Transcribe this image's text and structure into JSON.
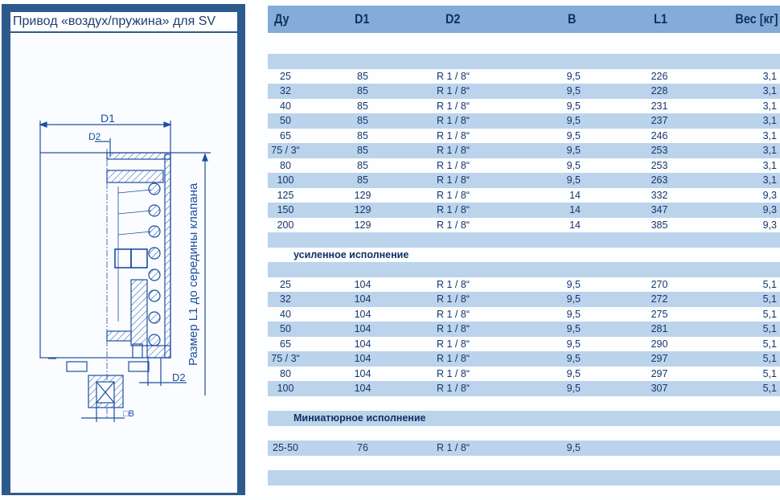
{
  "title": "Привод «воздух/пружина» для SV",
  "drawing": {
    "label_d1": "D1",
    "label_d2_top": "D2",
    "label_d2_bottom": "D2",
    "label_b": "□B",
    "vertical_caption": "Размер L1 до середины клапана",
    "line_color": "#1d4fa0"
  },
  "colors": {
    "frame": "#2d5a8c",
    "header": "#85acd8",
    "stripe": "#bcd3ec",
    "text": "#14376a"
  },
  "table": {
    "columns": [
      "Ду",
      "D1",
      "D2",
      "B",
      "L1",
      "Вес [кг]"
    ],
    "rows": [
      {
        "type": "blank"
      },
      {
        "type": "blank"
      },
      {
        "type": "data",
        "cells": [
          "25",
          "85",
          "R 1 / 8“",
          "9,5",
          "226",
          "3,1"
        ]
      },
      {
        "type": "data",
        "cells": [
          "32",
          "85",
          "R 1 / 8“",
          "9,5",
          "228",
          "3,1"
        ]
      },
      {
        "type": "data",
        "cells": [
          "40",
          "85",
          "R 1 / 8“",
          "9,5",
          "231",
          "3,1"
        ]
      },
      {
        "type": "data",
        "cells": [
          "50",
          "85",
          "R 1 / 8“",
          "9,5",
          "237",
          "3,1"
        ]
      },
      {
        "type": "data",
        "cells": [
          "65",
          "85",
          "R 1 / 8“",
          "9,5",
          "246",
          "3,1"
        ]
      },
      {
        "type": "data",
        "cells": [
          "75 / 3“",
          "85",
          "R 1 / 8“",
          "9,5",
          "253",
          "3,1"
        ]
      },
      {
        "type": "data",
        "cells": [
          "80",
          "85",
          "R 1 / 8“",
          "9,5",
          "253",
          "3,1"
        ]
      },
      {
        "type": "data",
        "cells": [
          "100",
          "85",
          "R 1 / 8“",
          "9,5",
          "263",
          "3,1"
        ]
      },
      {
        "type": "data",
        "cells": [
          "125",
          "129",
          "R 1 / 8“",
          "14",
          "332",
          "9,3"
        ]
      },
      {
        "type": "data",
        "cells": [
          "150",
          "129",
          "R 1 / 8“",
          "14",
          "347",
          "9,3"
        ]
      },
      {
        "type": "data",
        "cells": [
          "200",
          "129",
          "R 1 / 8“",
          "14",
          "385",
          "9,3"
        ]
      },
      {
        "type": "blank"
      },
      {
        "type": "section",
        "label": "усиленное исполнение"
      },
      {
        "type": "blank"
      },
      {
        "type": "data",
        "cells": [
          "25",
          "104",
          "R 1 / 8“",
          "9,5",
          "270",
          "5,1"
        ]
      },
      {
        "type": "data",
        "cells": [
          "32",
          "104",
          "R 1 / 8“",
          "9,5",
          "272",
          "5,1"
        ]
      },
      {
        "type": "data",
        "cells": [
          "40",
          "104",
          "R 1 / 8“",
          "9,5",
          "275",
          "5,1"
        ]
      },
      {
        "type": "data",
        "cells": [
          "50",
          "104",
          "R 1 / 8“",
          "9,5",
          "281",
          "5,1"
        ]
      },
      {
        "type": "data",
        "cells": [
          "65",
          "104",
          "R 1 / 8“",
          "9,5",
          "290",
          "5,1"
        ]
      },
      {
        "type": "data",
        "cells": [
          "75 / 3“",
          "104",
          "R 1 / 8“",
          "9,5",
          "297",
          "5,1"
        ]
      },
      {
        "type": "data",
        "cells": [
          "80",
          "104",
          "R 1 / 8“",
          "9,5",
          "297",
          "5,1"
        ]
      },
      {
        "type": "data",
        "cells": [
          "100",
          "104",
          "R 1 / 8“",
          "9,5",
          "307",
          "5,1"
        ]
      },
      {
        "type": "blank"
      },
      {
        "type": "section",
        "label": "Миниатюрное исполнение"
      },
      {
        "type": "blank"
      },
      {
        "type": "data",
        "cells": [
          "25-50",
          "76",
          "R 1 / 8“",
          "9,5",
          "",
          ""
        ]
      },
      {
        "type": "blank"
      },
      {
        "type": "blank"
      },
      {
        "type": "blank"
      }
    ]
  }
}
